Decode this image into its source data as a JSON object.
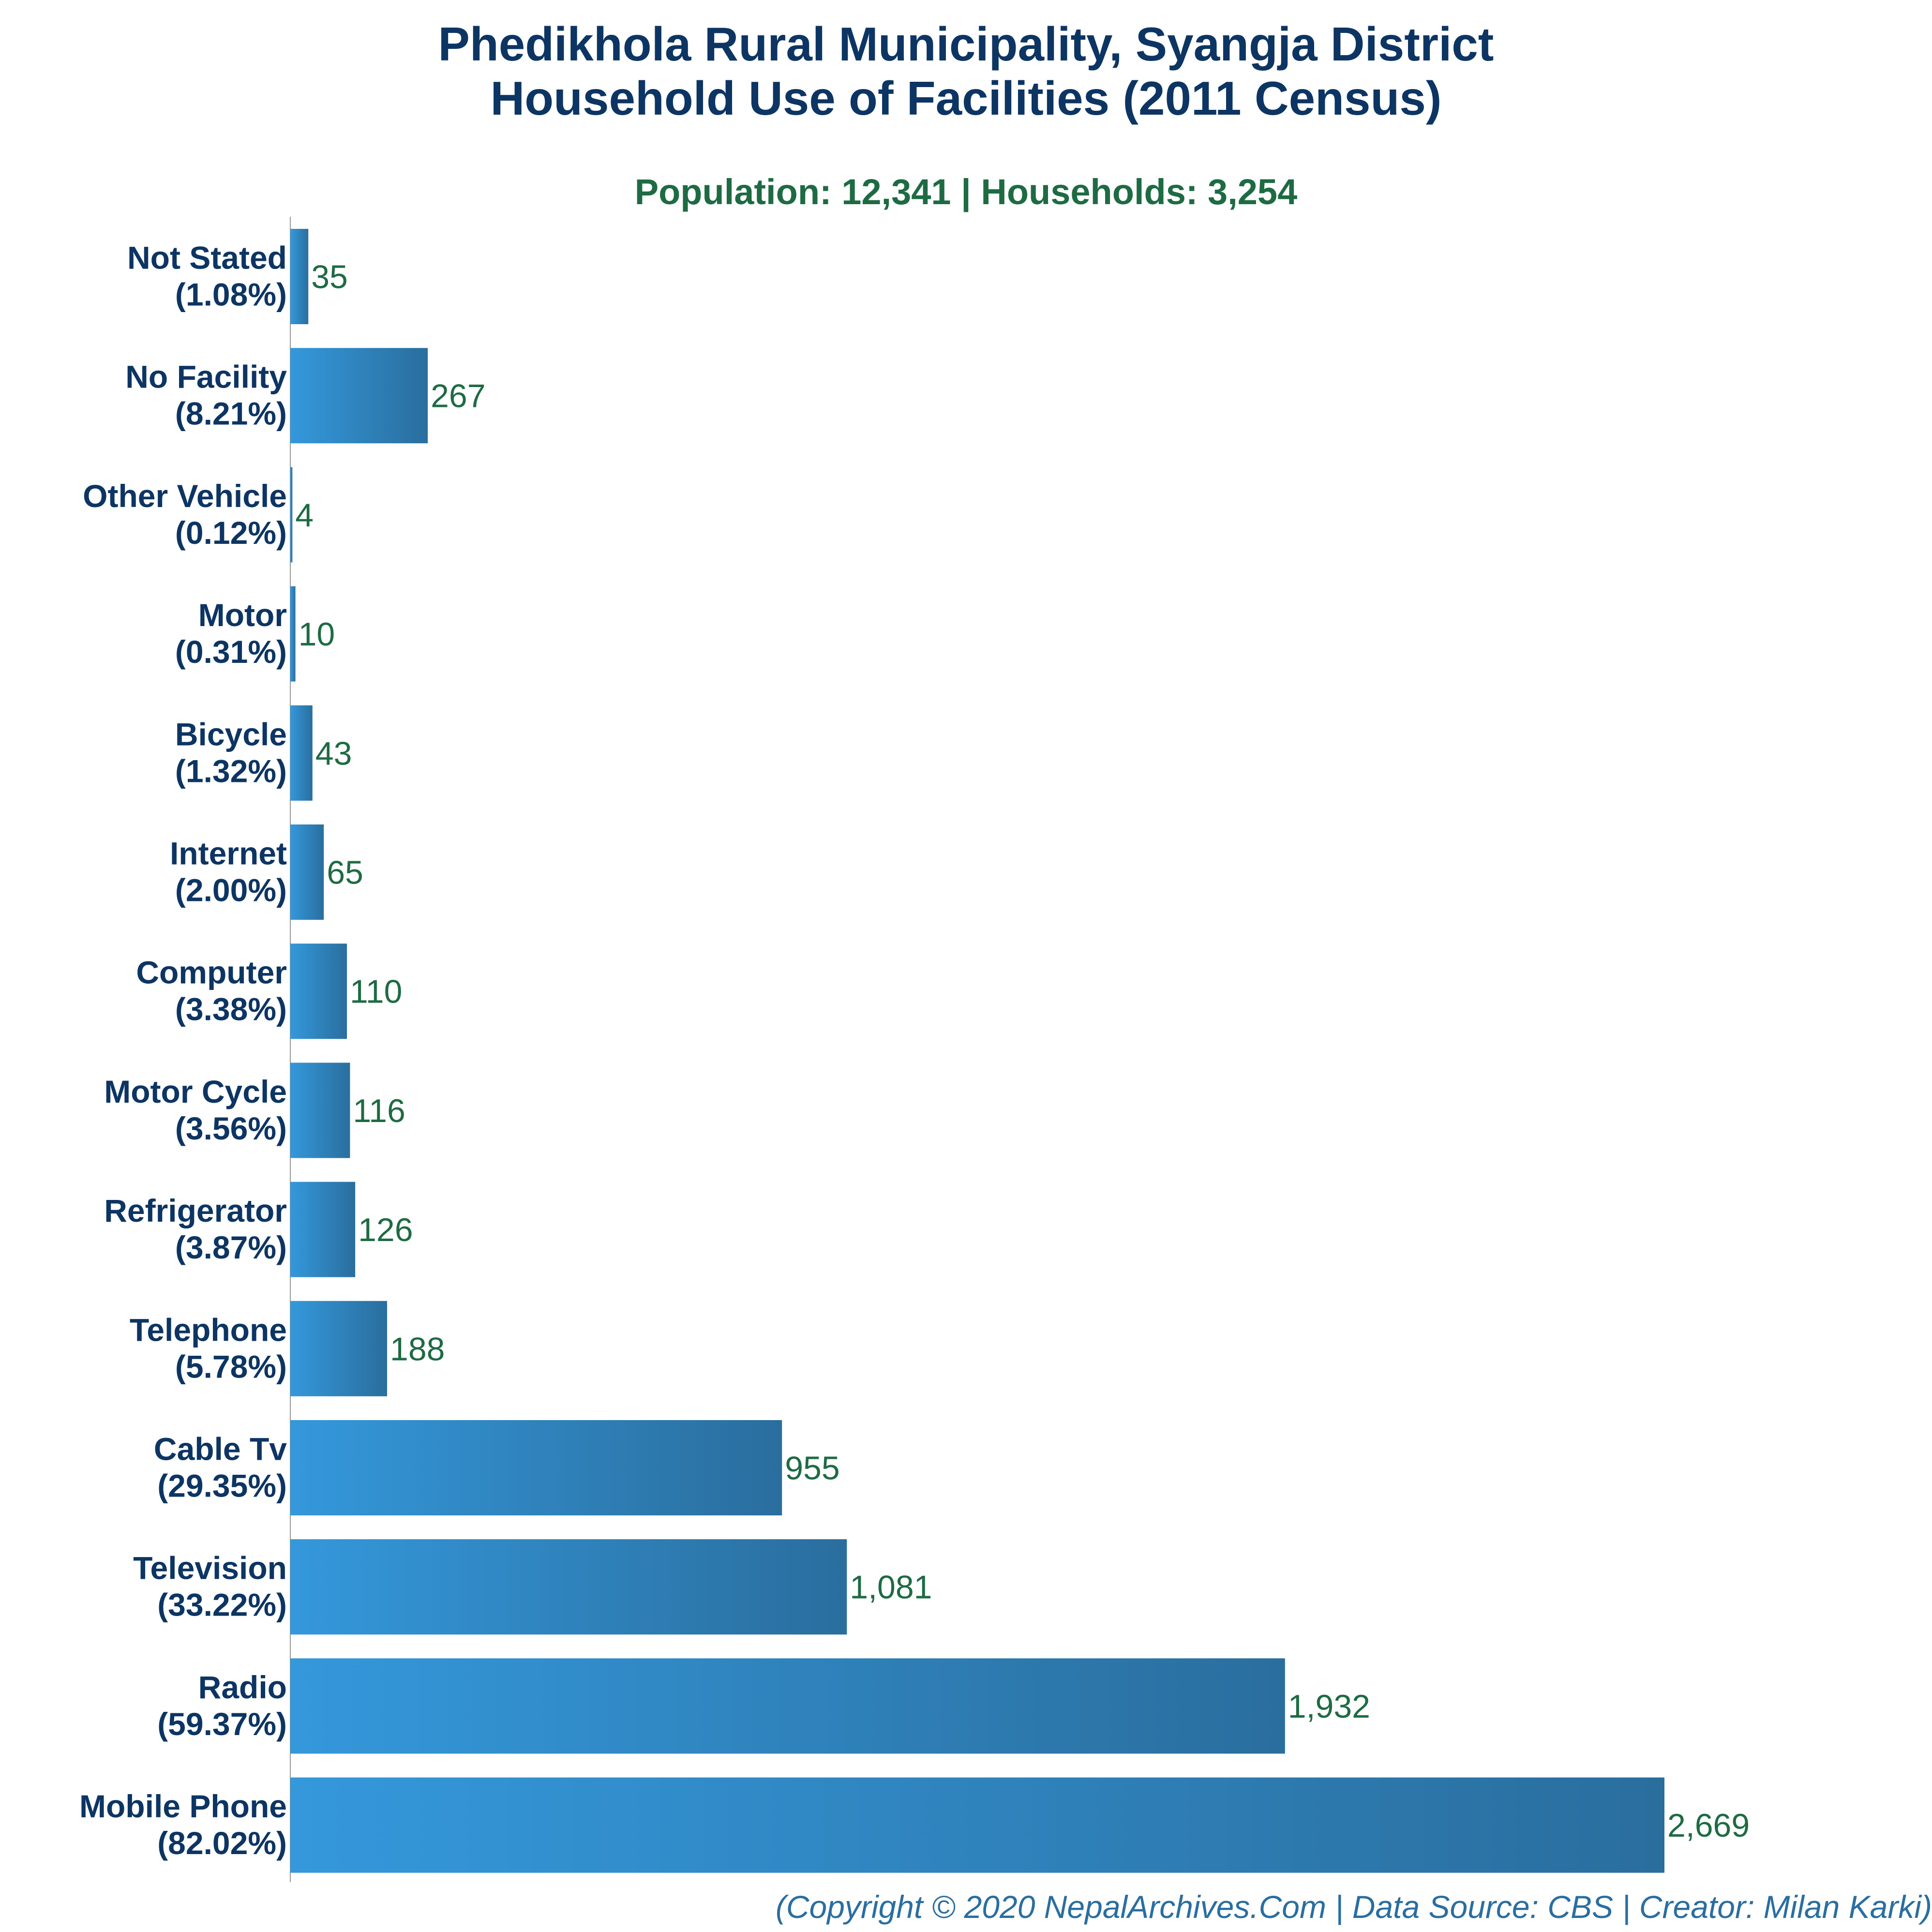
{
  "title_lines": [
    "Phedikhola Rural Municipality, Syangja District",
    "Household Use of Facilities (2011 Census)"
  ],
  "subtitle": "Population: 12,341 | Households: 3,254",
  "footer": "(Copyright © 2020 NepalArchives.Com | Data Source: CBS | Creator: Milan Karki)",
  "colors": {
    "title": "#0d3563",
    "subtitle": "#1e6b43",
    "category_label": "#0d3563",
    "value_label": "#1e6b43",
    "bar_light": "#3498db",
    "bar_dark": "#2a6e9e",
    "axis": "#999999",
    "footer": "#2a6ea0"
  },
  "chart_data": {
    "type": "bar",
    "orientation": "horizontal",
    "categories": [
      "Not Stated",
      "No Facility",
      "Other Vehicle",
      "Motor",
      "Bicycle",
      "Internet",
      "Computer",
      "Motor Cycle",
      "Refrigerator",
      "Telephone",
      "Cable Tv",
      "Television",
      "Radio",
      "Mobile Phone"
    ],
    "percent_labels": [
      "(1.08%)",
      "(8.21%)",
      "(0.12%)",
      "(0.31%)",
      "(1.32%)",
      "(2.00%)",
      "(3.38%)",
      "(3.56%)",
      "(3.87%)",
      "(5.78%)",
      "(29.35%)",
      "(33.22%)",
      "(59.37%)",
      "(82.02%)"
    ],
    "values": [
      35,
      267,
      4,
      10,
      43,
      65,
      110,
      116,
      126,
      188,
      955,
      1081,
      1932,
      2669
    ],
    "value_labels": [
      "35",
      "267",
      "4",
      "10",
      "43",
      "65",
      "110",
      "116",
      "126",
      "188",
      "955",
      "1,081",
      "1,932",
      "2,669"
    ],
    "xlim": [
      0,
      2669
    ],
    "xlabel": "",
    "ylabel": "",
    "grid": false,
    "legend": "none"
  }
}
